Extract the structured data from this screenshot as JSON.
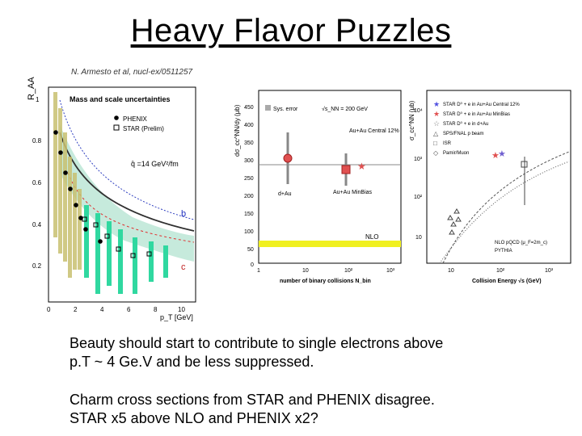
{
  "slide": {
    "title": "Heavy Flavor Puzzles",
    "reference": "N. Armesto et al, nucl-ex/0511257",
    "paragraph1_line1": "Beauty should start to contribute to single electrons above",
    "paragraph1_line2": "p.T ~ 4 Ge.V and be less suppressed.",
    "paragraph2_line1": "Charm cross sections from STAR and PHENIX disagree.",
    "paragraph2_line2": "STAR x5 above NLO and PHENIX x2?"
  },
  "left_plot": {
    "ylabel": "R_AA",
    "xlabel": "p_T [GeV]",
    "legend_title": "Mass and scale uncertainties",
    "legend_phenix": "PHENIX",
    "legend_star": "STAR (Prelim)",
    "qhat": "q̂ =14 GeV²/fm",
    "label_b": "b",
    "label_c": "c",
    "yticks": [
      "0.2",
      "0.4",
      "0.6",
      "0.8",
      "1"
    ],
    "xticks": [
      "0",
      "2",
      "4",
      "6",
      "8",
      "10"
    ]
  },
  "middle_plot": {
    "ylabel": "dσ_cc^NN/dy (μb)",
    "xlabel": "number of binary collisions N_bin",
    "legend_sys": "Sys. error",
    "energy": "√s_NN = 200 GeV",
    "auau_central": "Au+Au Central 12%",
    "dau": "d+Au",
    "auau_minbias": "Au+Au MinBias",
    "nlo": "NLO",
    "yticks": [
      "0",
      "50",
      "100",
      "150",
      "200",
      "250",
      "300",
      "350",
      "400",
      "450"
    ],
    "xticks": [
      "1",
      "10",
      "10²",
      "10³"
    ]
  },
  "right_plot": {
    "ylabel": "σ_cc^NN (μb)",
    "xlabel": "Collision Energy √s (GeV)",
    "legend": [
      "STAR D⁰ + e in Au+Au Central 12%",
      "STAR D⁰ + e in Au+Au MinBias",
      "STAR D⁰ + e in d+Au",
      "SPS/FNAL p beam",
      "ISR",
      "Pamir/Muon"
    ],
    "nlo_label": "NLO pQCD (μ_F=2m_c)",
    "pythia_label": "PYTHIA",
    "yticks": [
      "10",
      "10²",
      "10³",
      "10⁴"
    ],
    "xticks": [
      "10",
      "10²",
      "10³"
    ]
  },
  "colors": {
    "phenix_band": "#c8c070",
    "star_band": "#30d8a0",
    "nlo_band": "#f0f020",
    "red_marker": "#e05050"
  }
}
